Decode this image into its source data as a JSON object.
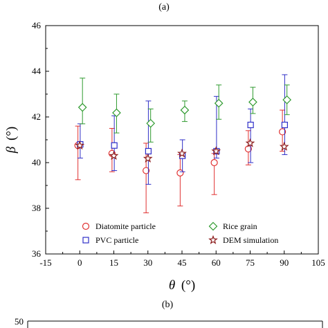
{
  "chart_data": [
    {
      "panel_label": "(a)",
      "type": "scatter",
      "xlabel_symbol": "θ",
      "xlabel_unit": "(°)",
      "ylabel_symbol": "β",
      "ylabel_unit": "(°)",
      "xlim": [
        -15,
        105
      ],
      "ylim": [
        36,
        46
      ],
      "x_ticks": [
        -15,
        0,
        15,
        30,
        45,
        60,
        75,
        90,
        105
      ],
      "y_ticks": [
        36,
        38,
        40,
        42,
        44,
        46
      ],
      "grid": false,
      "legend_placement": "bottom-inside",
      "series": [
        {
          "name": "Diatomite particle",
          "marker": "circle",
          "color": "#e03030",
          "points": [
            {
              "x": -0.8,
              "y": 40.75,
              "lo": 39.25,
              "hi": 41.6
            },
            {
              "x": 14.2,
              "y": 40.4,
              "lo": 39.6,
              "hi": 41.5
            },
            {
              "x": 29.2,
              "y": 39.65,
              "lo": 37.8,
              "hi": 40.85
            },
            {
              "x": 44.2,
              "y": 39.55,
              "lo": 38.1,
              "hi": 40.35
            },
            {
              "x": 59.2,
              "y": 40.0,
              "lo": 38.6,
              "hi": 40.4
            },
            {
              "x": 74.2,
              "y": 40.6,
              "lo": 39.9,
              "hi": 41.4
            },
            {
              "x": 89.2,
              "y": 41.35,
              "lo": 40.5,
              "hi": 42.3
            }
          ]
        },
        {
          "name": "PVC particle",
          "marker": "square",
          "color": "#2e2ec8",
          "points": [
            {
              "x": 0.2,
              "y": 40.8,
              "lo": 40.2,
              "hi": 41.7
            },
            {
              "x": 15.2,
              "y": 40.75,
              "lo": 39.65,
              "hi": 42.05
            },
            {
              "x": 30.2,
              "y": 40.5,
              "lo": 39.05,
              "hi": 42.7
            },
            {
              "x": 45.2,
              "y": 40.3,
              "lo": 39.6,
              "hi": 41.0
            },
            {
              "x": 60.2,
              "y": 40.5,
              "lo": 40.2,
              "hi": 42.9
            },
            {
              "x": 75.2,
              "y": 41.65,
              "lo": 40.0,
              "hi": 42.35
            },
            {
              "x": 90.2,
              "y": 41.65,
              "lo": 40.35,
              "hi": 43.85
            }
          ]
        },
        {
          "name": "Rice grain",
          "marker": "diamond",
          "color": "#2e9a2e",
          "points": [
            {
              "x": 1.2,
              "y": 42.42,
              "lo": 41.7,
              "hi": 43.7
            },
            {
              "x": 16.2,
              "y": 42.18,
              "lo": 41.3,
              "hi": 43.0
            },
            {
              "x": 31.2,
              "y": 41.72,
              "lo": 40.9,
              "hi": 42.35
            },
            {
              "x": 46.2,
              "y": 42.3,
              "lo": 41.8,
              "hi": 42.7
            },
            {
              "x": 61.2,
              "y": 42.6,
              "lo": 41.9,
              "hi": 43.4
            },
            {
              "x": 76.2,
              "y": 42.65,
              "lo": 42.15,
              "hi": 43.3
            },
            {
              "x": 91.2,
              "y": 42.75,
              "lo": 42.1,
              "hi": 43.4
            }
          ]
        },
        {
          "name": "DEM simulation",
          "marker": "star",
          "color": "#8b1a1a",
          "points": [
            {
              "x": 0.0,
              "y": 40.75
            },
            {
              "x": 15.0,
              "y": 40.3
            },
            {
              "x": 30.0,
              "y": 40.18
            },
            {
              "x": 45.0,
              "y": 40.4
            },
            {
              "x": 60.0,
              "y": 40.5
            },
            {
              "x": 75.0,
              "y": 40.85
            },
            {
              "x": 90.0,
              "y": 40.7
            }
          ]
        }
      ]
    },
    {
      "panel_label": "(b)",
      "type": "scatter",
      "y_ticks": [
        50
      ],
      "note": "panel cut off at bottom edge"
    }
  ]
}
